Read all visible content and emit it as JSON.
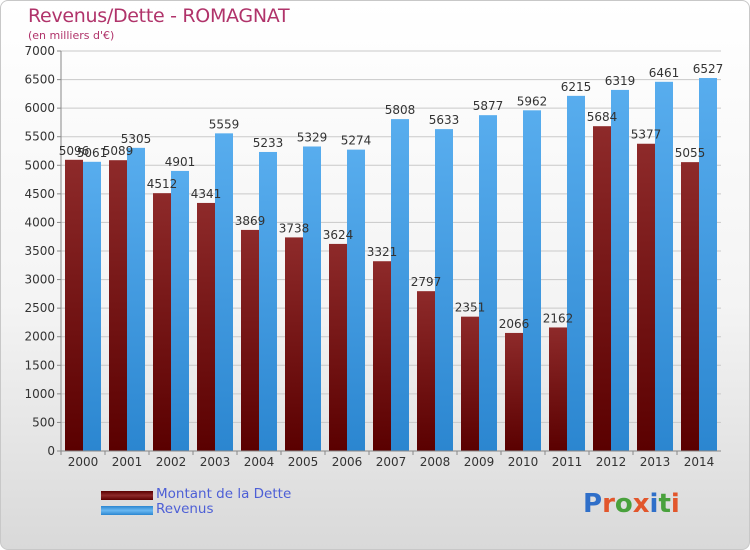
{
  "title": "Revenus/Dette - ROMAGNAT",
  "subtitle": "(en milliers d'€)",
  "colors": {
    "dette": "#7b1c1c",
    "revenus": "#3d9ae2",
    "title": "#b0336a",
    "legend_text": "#4d5fd6"
  },
  "legend": {
    "dette_label": "Montant de la Dette",
    "revenus_label": "Revenus"
  },
  "logo": {
    "text": "Proxiti",
    "letter_colors": [
      "#2f6fc9",
      "#e2562c",
      "#49a13c",
      "#e2562c",
      "#2f6fc9",
      "#49a13c",
      "#e2562c"
    ]
  },
  "chart_data": {
    "type": "bar",
    "categories": [
      "2000",
      "2001",
      "2002",
      "2003",
      "2004",
      "2005",
      "2006",
      "2007",
      "2008",
      "2009",
      "2010",
      "2011",
      "2012",
      "2013",
      "2014"
    ],
    "series": [
      {
        "name": "Montant de la Dette",
        "values": [
          5096,
          5089,
          4512,
          4341,
          3869,
          3738,
          3624,
          3321,
          2797,
          2351,
          2066,
          2162,
          5684,
          5377,
          5055
        ],
        "labels": [
          "5096",
          "5089",
          "4512",
          "4341",
          "3869",
          "3738",
          "3624",
          "3321",
          "2797",
          "2351",
          "2066",
          "2162",
          "5684",
          "5377",
          "5055"
        ]
      },
      {
        "name": "Revenus",
        "values": [
          5061,
          5305,
          4901,
          5559,
          5233,
          5329,
          5274,
          5808,
          5633,
          5877,
          5962,
          6215,
          6319,
          6461,
          6527
        ],
        "labels": [
          "5061",
          "5305",
          "4901",
          "5559",
          "5233",
          "5329",
          "5274",
          "5808",
          "5633",
          "5877",
          "5962",
          "6215",
          "6319",
          "6461",
          "6527"
        ]
      }
    ],
    "ylim": [
      0,
      7000
    ],
    "yticks": [
      0,
      500,
      1000,
      1500,
      2000,
      2500,
      3000,
      3500,
      4000,
      4500,
      5000,
      5500,
      6000,
      6500,
      7000
    ],
    "grid": true,
    "legend_position": "bottom-left"
  }
}
